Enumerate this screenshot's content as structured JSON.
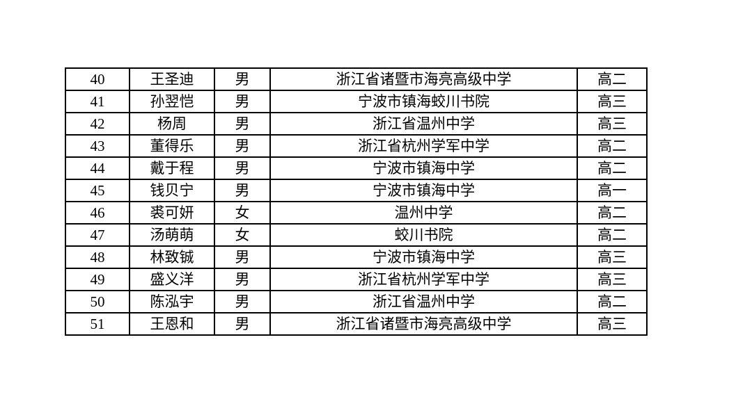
{
  "table": {
    "columns": [
      "number",
      "name",
      "gender",
      "school",
      "grade"
    ],
    "rows": [
      {
        "number": "40",
        "name": "王圣迪",
        "gender": "男",
        "school": "浙江省诸暨市海亮高级中学",
        "grade": "高二"
      },
      {
        "number": "41",
        "name": "孙翌恺",
        "gender": "男",
        "school": "宁波市镇海蛟川书院",
        "grade": "高三"
      },
      {
        "number": "42",
        "name": "杨周",
        "gender": "男",
        "school": "浙江省温州中学",
        "grade": "高三"
      },
      {
        "number": "43",
        "name": "董得乐",
        "gender": "男",
        "school": "浙江省杭州学军中学",
        "grade": "高二"
      },
      {
        "number": "44",
        "name": "戴于程",
        "gender": "男",
        "school": "宁波市镇海中学",
        "grade": "高二"
      },
      {
        "number": "45",
        "name": "钱贝宁",
        "gender": "男",
        "school": "宁波市镇海中学",
        "grade": "高一"
      },
      {
        "number": "46",
        "name": "裘可妍",
        "gender": "女",
        "school": "温州中学",
        "grade": "高二"
      },
      {
        "number": "47",
        "name": "汤萌萌",
        "gender": "女",
        "school": "蛟川书院",
        "grade": "高二"
      },
      {
        "number": "48",
        "name": "林致铖",
        "gender": "男",
        "school": "宁波市镇海中学",
        "grade": "高三"
      },
      {
        "number": "49",
        "name": "盛义洋",
        "gender": "男",
        "school": "浙江省杭州学军中学",
        "grade": "高三"
      },
      {
        "number": "50",
        "name": "陈泓宇",
        "gender": "男",
        "school": "浙江省温州中学",
        "grade": "高二"
      },
      {
        "number": "51",
        "name": "王恩和",
        "gender": "男",
        "school": "浙江省诸暨市海亮高级中学",
        "grade": "高三"
      }
    ],
    "border_color": "#000000"
  }
}
